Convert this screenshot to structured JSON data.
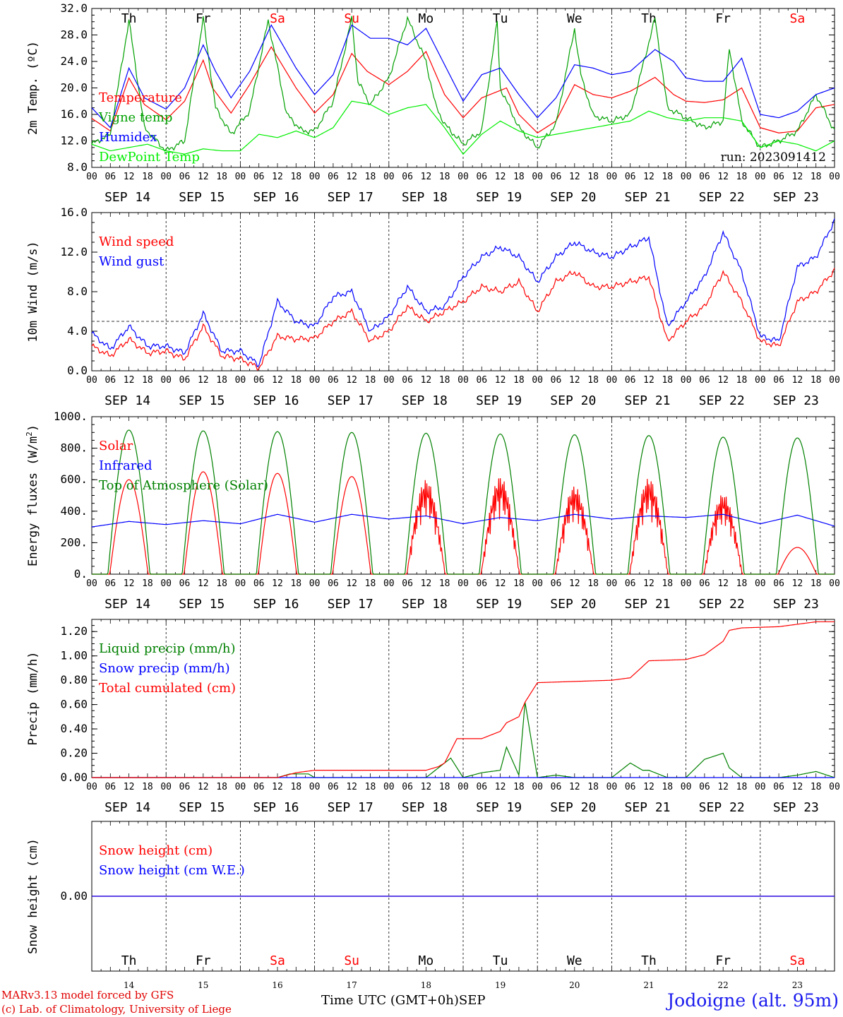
{
  "chart_data": [
    {
      "type": "line",
      "ylabel": "2m Temp. (ºC)",
      "ylim": [
        8,
        32
      ],
      "yticks": [
        "8.0",
        "12.0",
        "16.0",
        "20.0",
        "24.0",
        "28.0",
        "32.0"
      ],
      "run_label": "run: 2023091412",
      "series": [
        {
          "name": "Temperature",
          "color": "#ff0000",
          "x_hours": [
            0,
            6,
            12,
            17,
            24,
            30,
            36,
            39,
            45,
            51,
            58,
            66,
            72,
            78,
            84,
            89,
            96,
            102,
            108,
            114,
            120,
            126,
            134,
            138,
            144,
            150,
            156,
            162,
            168,
            174,
            182,
            188,
            192,
            198,
            204,
            210,
            216,
            222,
            228,
            234,
            240
          ],
          "values": [
            15.4,
            13.5,
            21.5,
            17.5,
            15.2,
            18.0,
            24.2,
            20.0,
            16.2,
            20.5,
            26.2,
            20.0,
            16.2,
            19.0,
            25.2,
            22.5,
            20.5,
            22.5,
            25.5,
            19.0,
            15.5,
            18.5,
            20.0,
            16.0,
            13.2,
            15.0,
            20.5,
            19.0,
            18.5,
            19.5,
            21.6,
            19.0,
            18.0,
            17.8,
            18.2,
            20.0,
            14.0,
            13.2,
            13.5,
            17.0,
            17.5
          ]
        },
        {
          "name": "Vigne temp",
          "color": "#00a000",
          "x_hours": [
            0,
            6,
            12,
            17,
            24,
            30,
            36,
            40,
            45,
            51,
            57,
            63,
            68,
            72,
            78,
            84,
            86,
            90,
            96,
            102,
            108,
            111,
            114,
            120,
            126,
            131,
            132,
            138,
            144,
            150,
            156,
            158,
            162,
            168,
            174,
            182,
            186,
            192,
            198,
            204,
            206,
            210,
            216,
            222,
            228,
            234,
            240
          ],
          "values": [
            11.5,
            13.0,
            30.2,
            14.0,
            10.5,
            12.0,
            30.5,
            17.0,
            13.0,
            16.5,
            30.2,
            16.0,
            13.5,
            13.5,
            18.0,
            30.5,
            21.0,
            17.5,
            21.5,
            30.5,
            24.0,
            17.5,
            14.5,
            11.5,
            13.5,
            30.0,
            20.0,
            14.0,
            11.0,
            14.5,
            29.0,
            22.0,
            15.8,
            15.0,
            16.0,
            30.5,
            17.0,
            15.5,
            14.0,
            15.0,
            26.0,
            15.0,
            11.0,
            12.0,
            13.5,
            19.0,
            13.5
          ]
        },
        {
          "name": "Humidex",
          "color": "#0000ff",
          "x_hours": [
            0,
            6,
            12,
            17,
            24,
            30,
            36,
            40,
            45,
            51,
            58,
            66,
            72,
            78,
            84,
            90,
            96,
            102,
            108,
            114,
            120,
            126,
            132,
            138,
            144,
            150,
            156,
            162,
            168,
            174,
            182,
            188,
            192,
            198,
            204,
            210,
            216,
            222,
            228,
            234,
            240
          ],
          "values": [
            17.0,
            14.0,
            23.0,
            18.5,
            16.8,
            20.0,
            26.5,
            22.5,
            18.5,
            22.5,
            29.5,
            23.0,
            19.0,
            22.0,
            29.5,
            27.5,
            27.5,
            26.5,
            29.0,
            23.5,
            18.0,
            22.0,
            23.0,
            19.0,
            15.5,
            18.5,
            23.5,
            23.0,
            22.0,
            22.5,
            25.8,
            24.0,
            21.5,
            21.0,
            21.0,
            24.5,
            16.0,
            15.5,
            16.5,
            19.0,
            20.0
          ]
        },
        {
          "name": "DewPoint Temp",
          "color": "#00ee00",
          "x_hours": [
            0,
            6,
            12,
            18,
            24,
            30,
            36,
            42,
            48,
            54,
            60,
            66,
            72,
            78,
            84,
            90,
            96,
            102,
            108,
            114,
            120,
            126,
            132,
            138,
            144,
            150,
            156,
            162,
            168,
            174,
            180,
            186,
            192,
            198,
            204,
            210,
            216,
            222,
            228,
            234,
            240
          ],
          "values": [
            11.5,
            10.5,
            11.0,
            11.5,
            10.5,
            10.0,
            10.8,
            10.5,
            10.5,
            13.0,
            12.5,
            13.5,
            12.5,
            14.0,
            18.0,
            17.5,
            16.0,
            17.0,
            17.5,
            14.0,
            10.0,
            13.0,
            15.0,
            13.5,
            12.5,
            13.0,
            13.5,
            14.0,
            14.5,
            15.0,
            16.5,
            15.5,
            15.0,
            15.5,
            15.5,
            15.0,
            11.0,
            12.0,
            11.5,
            10.5,
            12.0
          ]
        }
      ]
    },
    {
      "type": "line",
      "ylabel": "10m Wind (m/s)",
      "ylim": [
        0,
        16
      ],
      "yticks": [
        "0.0",
        "4.0",
        "8.0",
        "12.0",
        "16.0"
      ],
      "reference_line": 5.0,
      "series": [
        {
          "name": "Wind speed",
          "color": "#ff0000",
          "x_hours": [
            0,
            6,
            12,
            18,
            24,
            30,
            36,
            42,
            48,
            54,
            60,
            66,
            72,
            78,
            84,
            90,
            96,
            102,
            108,
            114,
            120,
            126,
            132,
            138,
            144,
            150,
            156,
            162,
            168,
            174,
            180,
            186,
            192,
            198,
            204,
            210,
            216,
            222,
            228,
            234,
            240
          ],
          "values": [
            2.5,
            1.5,
            3.2,
            1.8,
            2.0,
            1.2,
            4.5,
            1.5,
            1.2,
            0.3,
            3.5,
            3.2,
            3.3,
            5.0,
            6.0,
            3.0,
            4.0,
            6.5,
            5.0,
            6.0,
            7.0,
            8.5,
            8.0,
            9.0,
            6.0,
            9.0,
            10.0,
            8.5,
            8.5,
            9.0,
            9.5,
            3.0,
            5.0,
            6.5,
            10.0,
            7.0,
            3.0,
            2.5,
            7.0,
            8.0,
            10.2
          ]
        },
        {
          "name": "Wind gust",
          "color": "#0000ff",
          "x_hours": [
            0,
            6,
            12,
            18,
            24,
            30,
            36,
            42,
            48,
            54,
            60,
            66,
            72,
            78,
            84,
            90,
            96,
            102,
            108,
            114,
            120,
            126,
            132,
            138,
            144,
            150,
            156,
            162,
            168,
            174,
            180,
            186,
            192,
            198,
            204,
            210,
            216,
            222,
            228,
            234,
            240
          ],
          "values": [
            3.8,
            2.2,
            4.5,
            2.5,
            2.5,
            1.8,
            5.8,
            2.0,
            2.0,
            0.6,
            7.0,
            5.0,
            4.5,
            7.5,
            8.0,
            4.0,
            5.5,
            8.5,
            6.0,
            6.5,
            9.5,
            11.5,
            12.5,
            11.5,
            9.0,
            11.5,
            13.0,
            12.0,
            11.5,
            12.5,
            13.5,
            4.5,
            7.0,
            9.5,
            14.0,
            10.0,
            3.5,
            3.0,
            10.5,
            11.5,
            15.2
          ]
        }
      ]
    },
    {
      "type": "line",
      "ylabel": "Energy fluxes (W/m²)",
      "ylim": [
        0,
        1000
      ],
      "yticks": [
        "0.",
        "200.",
        "400.",
        "600.",
        "800.",
        "1000."
      ],
      "series": [
        {
          "name": "Solar",
          "color": "#ff0000",
          "daily_peaks": [
            600,
            650,
            640,
            620,
            600,
            620,
            560,
            610,
            510,
            170
          ]
        },
        {
          "name": "Infrared",
          "color": "#0000ff",
          "x_hours": [
            0,
            12,
            24,
            36,
            48,
            60,
            72,
            84,
            96,
            108,
            120,
            132,
            144,
            156,
            168,
            180,
            192,
            204,
            216,
            228,
            240
          ],
          "values": [
            300,
            335,
            315,
            340,
            320,
            380,
            330,
            380,
            350,
            370,
            320,
            360,
            340,
            380,
            350,
            370,
            360,
            380,
            320,
            375,
            305
          ]
        },
        {
          "name": "Top of Atmosphere (Solar)",
          "color": "#008000",
          "daily_peaks": [
            915,
            910,
            905,
            900,
            895,
            890,
            885,
            880,
            870,
            865
          ]
        }
      ]
    },
    {
      "type": "line",
      "ylabel": "Precip (mm/h)",
      "ylim": [
        0,
        1.3
      ],
      "yticks": [
        "0.00",
        "0.20",
        "0.40",
        "0.60",
        "0.80",
        "1.00",
        "1.20"
      ],
      "series": [
        {
          "name": "Liquid precip (mm/h)",
          "color": "#008000",
          "x_hours": [
            0,
            60,
            64,
            70,
            72,
            108,
            112,
            116,
            120,
            126,
            132,
            134,
            138,
            140,
            144,
            150,
            156,
            168,
            174,
            178,
            180,
            186,
            192,
            198,
            204,
            206,
            210,
            222,
            228,
            234,
            240
          ],
          "values": [
            0,
            0,
            0.03,
            0.03,
            0,
            0,
            0.08,
            0.16,
            0,
            0.04,
            0.06,
            0.25,
            0.02,
            0.62,
            0,
            0.02,
            0,
            0,
            0.12,
            0.06,
            0.06,
            0,
            0,
            0.15,
            0.2,
            0.08,
            0,
            0,
            0.02,
            0.05,
            0
          ]
        },
        {
          "name": "Snow precip (mm/h)",
          "color": "#0000ff",
          "x_hours": [
            0,
            240
          ],
          "values": [
            0,
            0
          ]
        },
        {
          "name": "Total cumulated (cm)",
          "color": "#ff0000",
          "x_hours": [
            0,
            60,
            66,
            72,
            108,
            112,
            114,
            118,
            120,
            126,
            132,
            134,
            138,
            140,
            144,
            156,
            168,
            174,
            180,
            192,
            198,
            204,
            206,
            210,
            222,
            234,
            240
          ],
          "values": [
            0,
            0,
            0.04,
            0.06,
            0.06,
            0.09,
            0.12,
            0.32,
            0.32,
            0.32,
            0.38,
            0.45,
            0.5,
            0.62,
            0.78,
            0.79,
            0.8,
            0.82,
            0.96,
            0.97,
            1.01,
            1.12,
            1.21,
            1.23,
            1.24,
            1.28,
            1.28
          ]
        }
      ]
    },
    {
      "type": "line",
      "ylabel": "Snow height (cm)",
      "yticks": [
        "0.00"
      ],
      "series": [
        {
          "name": "Snow height (cm)",
          "color": "#ff0000",
          "x_hours": [
            0,
            240
          ],
          "values": [
            0,
            0
          ]
        },
        {
          "name": "Snow height (cm W.E.)",
          "color": "#0000ff",
          "x_hours": [
            0,
            240
          ],
          "values": [
            0,
            0
          ]
        }
      ]
    }
  ],
  "axis": {
    "hour_ticks": [
      "00",
      "06",
      "12",
      "18"
    ],
    "end_tick": "00",
    "date_labels": [
      "SEP 14",
      "SEP 15",
      "SEP 16",
      "SEP 17",
      "SEP 18",
      "SEP 19",
      "SEP 20",
      "SEP 21",
      "SEP 22",
      "SEP 23"
    ],
    "weekdays": [
      "Th",
      "Fr",
      "Sa",
      "Su",
      "Mo",
      "Tu",
      "We",
      "Th",
      "Fr",
      "Sa"
    ],
    "weekday_colors": [
      "#000000",
      "#000000",
      "#ff0000",
      "#ff0000",
      "#000000",
      "#000000",
      "#000000",
      "#000000",
      "#000000",
      "#ff0000"
    ],
    "day_numbers": [
      "14",
      "15",
      "16",
      "17",
      "18",
      "19",
      "20",
      "21",
      "22",
      "23"
    ],
    "month": "SEP"
  },
  "footer": {
    "credit_line1": "MARv3.13 model forced by GFS",
    "credit_line2": "(c) Lab. of Climatology, University of Liege",
    "xlabel": "Time UTC (GMT+0h)",
    "station": "Jodoigne (alt. 95m)"
  }
}
